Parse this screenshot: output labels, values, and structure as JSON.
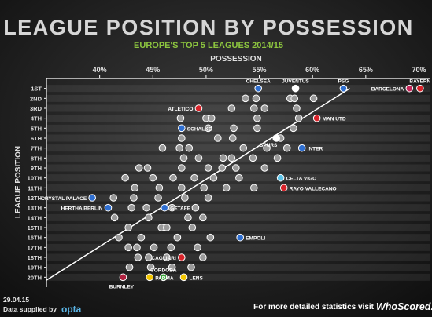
{
  "chart_data": {
    "type": "scatter",
    "title": "LEAGUE POSITION BY POSSESSION",
    "subtitle": "EUROPE'S TOP 5 LEAGUES 2014/15",
    "x_label": "POSSESSION",
    "y_label": "LEAGUE POSITION",
    "xlim": [
      35,
      71
    ],
    "xticks": [
      {
        "value": 40,
        "label": "40%"
      },
      {
        "value": 45,
        "label": "45%"
      },
      {
        "value": 50,
        "label": "50%"
      },
      {
        "value": 55,
        "label": "55%"
      },
      {
        "value": 60,
        "label": "60%"
      },
      {
        "value": 65,
        "label": "65%"
      },
      {
        "value": 70,
        "label": "70%"
      }
    ],
    "ylim": [
      0,
      21
    ],
    "y_reversed": true,
    "yticks": [
      {
        "value": 1,
        "label": "1ST"
      },
      {
        "value": 2,
        "label": "2ND"
      },
      {
        "value": 3,
        "label": "3RD"
      },
      {
        "value": 4,
        "label": "4TH"
      },
      {
        "value": 5,
        "label": "5TH"
      },
      {
        "value": 6,
        "label": "6TH"
      },
      {
        "value": 7,
        "label": "7TH"
      },
      {
        "value": 8,
        "label": "8TH"
      },
      {
        "value": 9,
        "label": "9TH"
      },
      {
        "value": 10,
        "label": "10TH"
      },
      {
        "value": 11,
        "label": "11TH"
      },
      {
        "value": 12,
        "label": "12TH"
      },
      {
        "value": 13,
        "label": "13TH"
      },
      {
        "value": 14,
        "label": "14TH"
      },
      {
        "value": 15,
        "label": "15TH"
      },
      {
        "value": 16,
        "label": "16TH"
      },
      {
        "value": 17,
        "label": "17TH"
      },
      {
        "value": 18,
        "label": "18TH"
      },
      {
        "value": 19,
        "label": "19TH"
      },
      {
        "value": 20,
        "label": "20TH"
      }
    ],
    "grid": true,
    "labels": [
      "CHELSEA",
      "JUVENTUS",
      "PSG",
      "BAYERN",
      "BARCELONA",
      "ATLETICO",
      "MAN UTD",
      "SCHALKE",
      "SPURS",
      "INTER",
      "CELTA VIGO",
      "RAYO VALLECANO",
      "CRYSTAL PALACE",
      "HERTHA BERLIN",
      "GETAFE",
      "EMPOLI",
      "CAGLIARI",
      "CORDOBA",
      "PARMA",
      "LENS",
      "BURNLEY"
    ],
    "x": [
      54.9,
      58.4,
      62.9,
      70.1,
      69.1,
      49.3,
      60.4,
      47.7,
      56.6,
      59.0,
      57.0,
      57.3,
      39.3,
      40.8,
      46.1,
      53.2,
      47.7,
      46.0,
      44.7,
      47.9,
      42.2
    ],
    "values": [
      1,
      1,
      1,
      1,
      1,
      3,
      4,
      5,
      6,
      7,
      10,
      11,
      12,
      13,
      13,
      16,
      18,
      20,
      20,
      20,
      20
    ],
    "colors": [
      "#2f6fd1",
      "#ffffff",
      "#2f6fd1",
      "#d8232a",
      "#c4275a",
      "#d8232a",
      "#d8232a",
      "#2f6fd1",
      "#ffffff",
      "#2f6fd1",
      "#5cc3e8",
      "#d8232a",
      "#2f6fd1",
      "#2f6fd1",
      "#2f6fd1",
      "#2f6fd1",
      "#d8232a",
      "#3aa63a",
      "#f2c500",
      "#f2c500",
      "#b0213f"
    ],
    "others": {
      "color": "#9a9a9a",
      "x": [
        53.7,
        54.7,
        57.9,
        58.3,
        60.1,
        52.4,
        54.5,
        55.5,
        58.5,
        47.6,
        50.0,
        50.5,
        54.8,
        58.7,
        50.2,
        52.6,
        54.8,
        58.2,
        47.7,
        51.1,
        52.5,
        57.0,
        45.9,
        48.4,
        47.5,
        53.5,
        55.7,
        57.6,
        47.9,
        49.3,
        51.6,
        52.4,
        54.4,
        56.7,
        43.7,
        44.5,
        47.7,
        50.2,
        51.5,
        52.8,
        55.5,
        42.4,
        45.0,
        46.9,
        48.9,
        50.7,
        53.1,
        43.3,
        45.6,
        47.7,
        49.8,
        51.9,
        54.5,
        41.3,
        43.2,
        45.5,
        48.0,
        50.2,
        43.0,
        44.4,
        46.8,
        49.0,
        41.4,
        44.6,
        48.3,
        49.7,
        42.7,
        45.8,
        46.3,
        48.7,
        41.8,
        43.9,
        47.3,
        50.4,
        42.7,
        43.5,
        45.1,
        46.7,
        49.2,
        43.6,
        44.6,
        46.3,
        49.7,
        42.8,
        44.8,
        46.8,
        48.6
      ],
      "values": [
        2,
        2,
        2,
        2,
        2,
        3,
        3,
        3,
        3,
        4,
        4,
        4,
        4,
        4,
        5,
        5,
        5,
        5,
        6,
        6,
        6,
        6,
        7,
        7,
        7,
        7,
        7,
        7,
        8,
        8,
        8,
        8,
        8,
        8,
        9,
        9,
        9,
        9,
        9,
        9,
        9,
        10,
        10,
        10,
        10,
        10,
        10,
        11,
        11,
        11,
        11,
        11,
        11,
        12,
        12,
        12,
        12,
        12,
        13,
        13,
        13,
        13,
        14,
        14,
        14,
        14,
        15,
        15,
        15,
        15,
        16,
        16,
        16,
        16,
        17,
        17,
        17,
        17,
        17,
        18,
        18,
        18,
        18,
        19,
        19,
        19,
        19
      ]
    },
    "trend": {
      "x": [
        35,
        63.5
      ],
      "values": [
        20.3,
        1
      ]
    }
  },
  "footer": {
    "date": "29.04.15",
    "source": "Data supplied by",
    "source_brand": "opta",
    "cta": "For more detailed statistics visit",
    "brand": "WhoScored.com"
  }
}
